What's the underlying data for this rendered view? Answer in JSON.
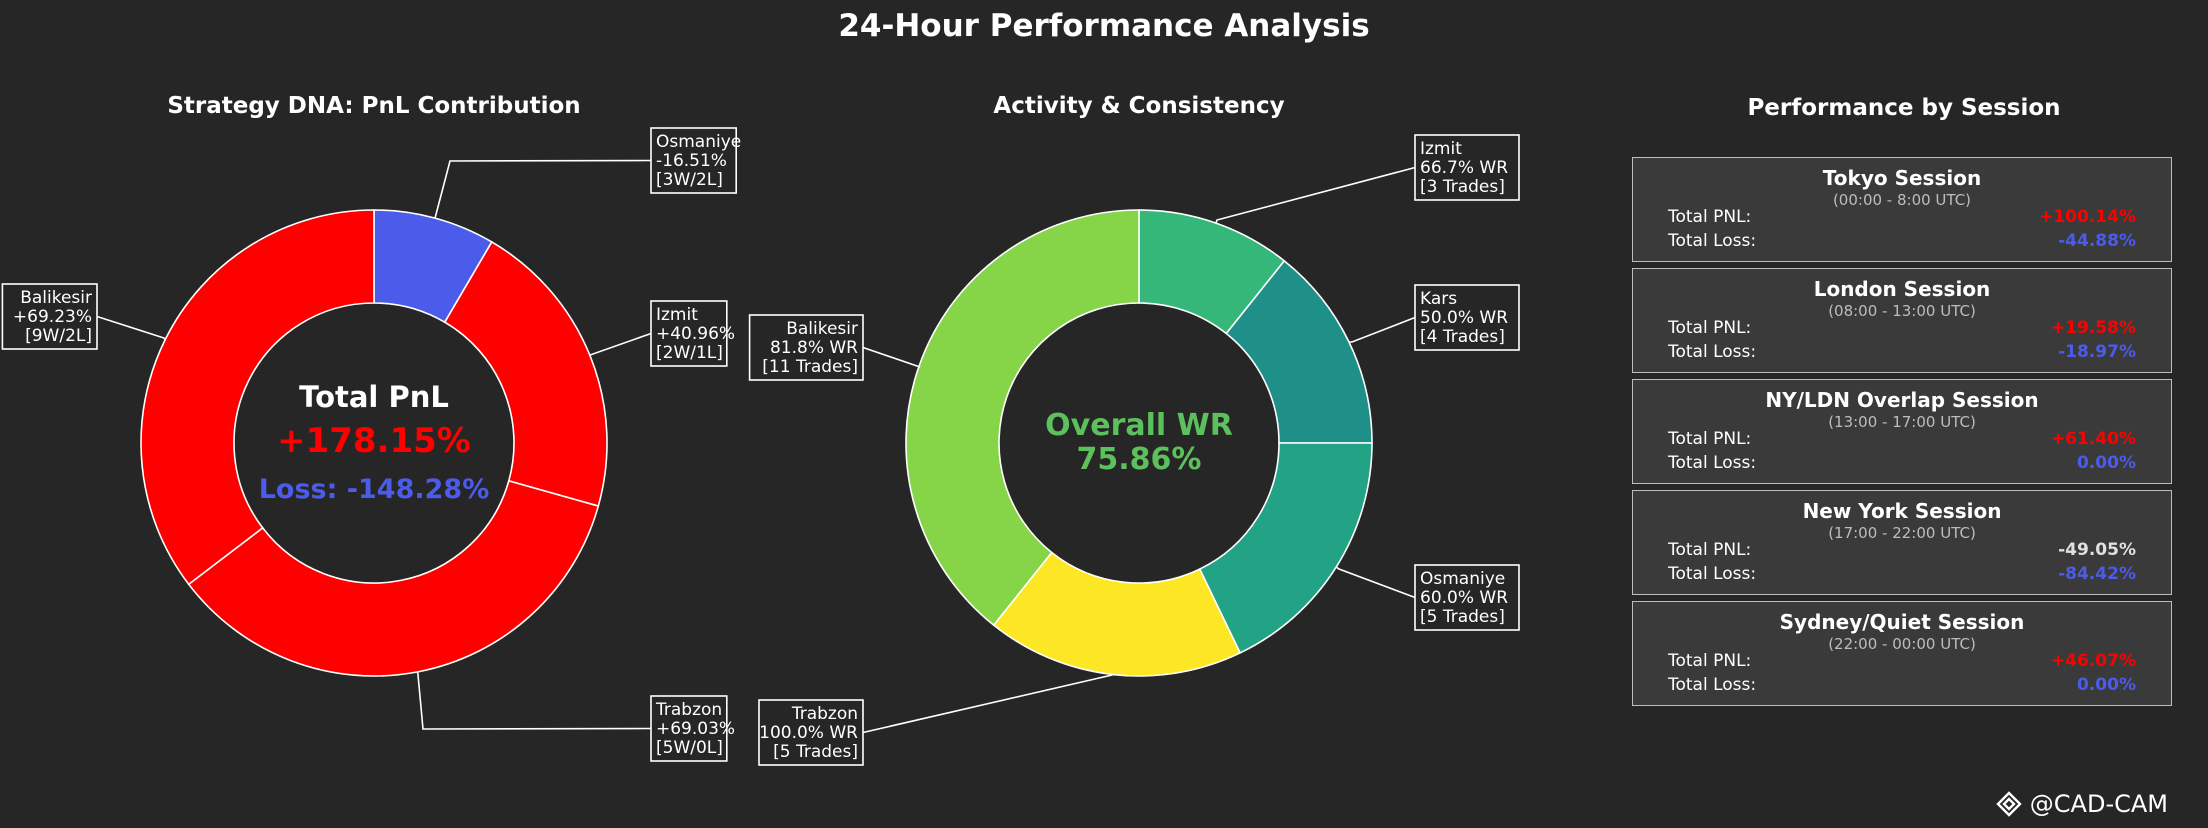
{
  "title": "24-Hour Performance Analysis",
  "colors": {
    "background": "#262626",
    "profit": "#ff0000",
    "loss": "#4b5bea",
    "win_rate": "#5cc05c",
    "neutral": "#e0e0e0"
  },
  "chart_data": [
    {
      "type": "pie",
      "title": "Strategy DNA: PnL Contribution",
      "center_label": "Total PnL",
      "center_value": "+178.15%",
      "center_loss": "Loss: -148.28%",
      "slices": [
        {
          "name": "Osmaniye",
          "value": 16.51,
          "color": "#4b5bea",
          "annotation": [
            "Osmaniye",
            "-16.51%",
            "[3W/2L]"
          ]
        },
        {
          "name": "Izmit",
          "value": 40.96,
          "color": "#ff0000",
          "annotation": [
            "Izmit",
            "+40.96%",
            "[2W/1L]"
          ]
        },
        {
          "name": "Trabzon",
          "value": 69.03,
          "color": "#ff0000",
          "annotation": [
            "Trabzon",
            "+69.03%",
            "[5W/0L]"
          ]
        },
        {
          "name": "Balikesir",
          "value": 69.23,
          "color": "#ff0000",
          "annotation": [
            "Balikesir",
            "+69.23%",
            "[9W/2L]"
          ]
        }
      ]
    },
    {
      "type": "pie",
      "title": "Activity & Consistency",
      "center_label": "Overall WR",
      "center_value": "75.86%",
      "slices": [
        {
          "name": "Izmit",
          "value": 3,
          "color": "#35b779",
          "annotation": [
            "Izmit",
            "66.7% WR",
            "[3 Trades]"
          ]
        },
        {
          "name": "Kars",
          "value": 4,
          "color": "#1f9088",
          "annotation": [
            "Kars",
            "50.0% WR",
            "[4 Trades]"
          ]
        },
        {
          "name": "Osmaniye",
          "value": 5,
          "color": "#22a385",
          "annotation": [
            "Osmaniye",
            "60.0% WR",
            "[5 Trades]"
          ]
        },
        {
          "name": "Trabzon",
          "value": 5,
          "color": "#fde725",
          "annotation": [
            "Trabzon",
            "100.0% WR",
            "[5 Trades]"
          ]
        },
        {
          "name": "Balikesir",
          "value": 11,
          "color": "#86d549",
          "annotation": [
            "Balikesir",
            "81.8% WR",
            "[11 Trades]"
          ]
        }
      ]
    }
  ],
  "sessions": {
    "title": "Performance by Session",
    "pnl_label": "Total PNL:",
    "loss_label": "Total Loss:",
    "items": [
      {
        "name": "Tokyo Session",
        "hours": "(00:00 - 8:00 UTC)",
        "pnl": "+100.14%",
        "pnl_color": "#ff0000",
        "loss": "-44.88%"
      },
      {
        "name": "London Session",
        "hours": "(08:00 - 13:00 UTC)",
        "pnl": "+19.58%",
        "pnl_color": "#ff0000",
        "loss": "-18.97%"
      },
      {
        "name": "NY/LDN Overlap Session",
        "hours": "(13:00 - 17:00 UTC)",
        "pnl": "+61.40%",
        "pnl_color": "#ff0000",
        "loss": "0.00%"
      },
      {
        "name": "New York Session",
        "hours": "(17:00 - 22:00 UTC)",
        "pnl": "-49.05%",
        "pnl_color": "#e0e0e0",
        "loss": "-84.42%"
      },
      {
        "name": "Sydney/Quiet Session",
        "hours": "(22:00 - 00:00 UTC)",
        "pnl": "+46.07%",
        "pnl_color": "#ff0000",
        "loss": "0.00%"
      }
    ]
  },
  "watermark": {
    "icon": "diamond-logo-icon",
    "text": "@CAD-CAM"
  }
}
